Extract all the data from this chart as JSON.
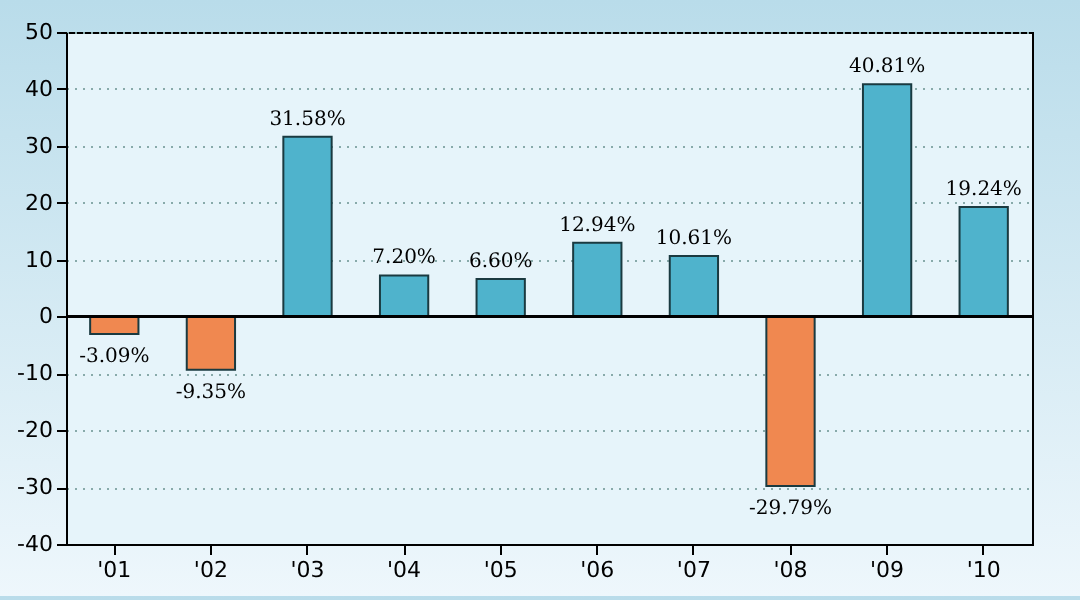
{
  "chart_data": {
    "type": "bar",
    "categories": [
      "'01",
      "'02",
      "'03",
      "'04",
      "'05",
      "'06",
      "'07",
      "'08",
      "'09",
      "'10"
    ],
    "values": [
      -3.09,
      -9.35,
      31.58,
      7.2,
      6.6,
      12.94,
      10.61,
      -29.79,
      40.81,
      19.24
    ],
    "colors": [
      "#f08850",
      "#f08850",
      "#4fb3cc",
      "#4fb3cc",
      "#4fb3cc",
      "#4fb3cc",
      "#4fb3cc",
      "#f08850",
      "#4fb3cc",
      "#4fb3cc"
    ],
    "value_labels": [
      "-3.09%",
      "-9.35%",
      "31.58%",
      "7.20%",
      "6.60%",
      "12.94%",
      "10.61%",
      "-29.79%",
      "40.81%",
      "19.24%"
    ],
    "ylim": [
      -40,
      50
    ],
    "yticks": [
      -40,
      -30,
      -20,
      -10,
      0,
      10,
      20,
      30,
      40,
      50
    ],
    "grid": "y"
  }
}
